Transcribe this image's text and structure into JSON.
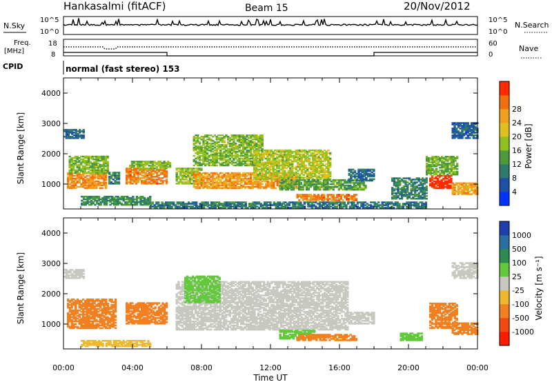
{
  "header": {
    "site": "Hankasalmi (fitACF)",
    "beam": "Beam 15",
    "date": "20/Nov/2012"
  },
  "status_panels": {
    "nsky_label": "N.Sky",
    "nsearch_label": "N.Search",
    "freq_label_1": "Freq.",
    "freq_label_2": "[MHz]",
    "nave_label": "Nave",
    "cpid_label": "CPID",
    "cpid_text": "normal (fast stereo) 153",
    "noise_ticks": [
      "10^5",
      "10^0"
    ],
    "freq_ticks": [
      "18",
      "8"
    ],
    "nave_ticks": [
      "60",
      "0"
    ]
  },
  "chart_data": [
    {
      "type": "heatmap",
      "title": "",
      "xlabel": "Time UT",
      "ylabel": "Slant Range [km]",
      "x_ticks": [
        "00:00",
        "04:00",
        "08:00",
        "12:00",
        "16:00",
        "20:00",
        "00:00"
      ],
      "xlim_hours": [
        0,
        24
      ],
      "ylim": [
        180,
        4500
      ],
      "y_ticks": [
        1000,
        2000,
        3000,
        4000
      ],
      "colorbar": {
        "label": "Power [dB]",
        "ticks": [
          "4",
          "8",
          "12",
          "16",
          "20",
          "24",
          "28"
        ],
        "range": [
          0,
          30
        ],
        "colors": [
          "#0033ff",
          "#1e50a8",
          "#2e7a6c",
          "#4c9a3c",
          "#90c020",
          "#e0c020",
          "#f0a020",
          "#f07010",
          "#ff2a00"
        ]
      },
      "blobs": [
        {
          "t0": 0.0,
          "t1": 1.2,
          "r0": 2500,
          "r1": 2800,
          "value": 7
        },
        {
          "t0": 0.2,
          "t1": 2.5,
          "r0": 850,
          "r1": 1350,
          "value": 23
        },
        {
          "t0": 0.3,
          "t1": 2.6,
          "r0": 1350,
          "r1": 1900,
          "value": 14
        },
        {
          "t0": 2.6,
          "t1": 3.2,
          "r0": 1000,
          "r1": 1400,
          "value": 9
        },
        {
          "t0": 3.6,
          "t1": 6.0,
          "r0": 1000,
          "r1": 1500,
          "value": 24
        },
        {
          "t0": 3.8,
          "t1": 6.2,
          "r0": 1500,
          "r1": 1750,
          "value": 14
        },
        {
          "t0": 1.0,
          "t1": 5.0,
          "r0": 300,
          "r1": 600,
          "value": 10
        },
        {
          "t0": 6.5,
          "t1": 8.0,
          "r0": 1000,
          "r1": 1500,
          "value": 15
        },
        {
          "t0": 7.5,
          "t1": 13.5,
          "r0": 850,
          "r1": 1350,
          "value": 22
        },
        {
          "t0": 7.5,
          "t1": 11.5,
          "r0": 1600,
          "r1": 2600,
          "value": 14
        },
        {
          "t0": 11.0,
          "t1": 15.5,
          "r0": 1150,
          "r1": 2100,
          "value": 16
        },
        {
          "t0": 12.5,
          "t1": 17.5,
          "r0": 800,
          "r1": 1150,
          "value": 12
        },
        {
          "t0": 13.5,
          "t1": 17.0,
          "r0": 450,
          "r1": 650,
          "value": 24
        },
        {
          "t0": 16.5,
          "t1": 18.0,
          "r0": 1100,
          "r1": 1500,
          "value": 7
        },
        {
          "t0": 19.0,
          "t1": 21.0,
          "r0": 500,
          "r1": 1200,
          "value": 9
        },
        {
          "t0": 21.2,
          "t1": 22.5,
          "r0": 850,
          "r1": 1300,
          "value": 29
        },
        {
          "t0": 21.0,
          "t1": 22.8,
          "r0": 1300,
          "r1": 1900,
          "value": 13
        },
        {
          "t0": 22.5,
          "t1": 24.0,
          "r0": 650,
          "r1": 1050,
          "value": 21
        },
        {
          "t0": 22.5,
          "t1": 24.0,
          "r0": 2500,
          "r1": 3000,
          "value": 6
        },
        {
          "t0": 5.0,
          "t1": 21.0,
          "r0": 200,
          "r1": 400,
          "value": 8
        }
      ]
    },
    {
      "type": "heatmap",
      "title": "",
      "xlabel": "Time UT",
      "ylabel": "Slant Range [km]",
      "x_ticks": [
        "00:00",
        "04:00",
        "08:00",
        "12:00",
        "16:00",
        "20:00",
        "00:00"
      ],
      "xlim_hours": [
        0,
        24
      ],
      "ylim": [
        180,
        4500
      ],
      "y_ticks": [
        1000,
        2000,
        3000,
        4000
      ],
      "colorbar": {
        "label": "Velocity [m s⁻¹]",
        "ticks": [
          "1000",
          "500",
          "100",
          "25",
          "-25",
          "-100",
          "-500",
          "-1000"
        ],
        "colors": [
          "#1f3fb0",
          "#2a6fa0",
          "#2f8a50",
          "#62c83c",
          "#c8c8c0",
          "#f0b830",
          "#f08020",
          "#f04a10",
          "#ff1a00"
        ]
      },
      "blobs": [
        {
          "t0": 0.0,
          "t1": 1.2,
          "r0": 2500,
          "r1": 2800,
          "value": 0
        },
        {
          "t0": 0.2,
          "t1": 3.0,
          "r0": 850,
          "r1": 1800,
          "value": -300
        },
        {
          "t0": 3.6,
          "t1": 6.0,
          "r0": 1000,
          "r1": 1700,
          "value": -300
        },
        {
          "t0": 1.0,
          "t1": 5.0,
          "r0": 250,
          "r1": 450,
          "value": -50
        },
        {
          "t0": 6.5,
          "t1": 16.5,
          "r0": 800,
          "r1": 2400,
          "value": 0
        },
        {
          "t0": 7.0,
          "t1": 9.0,
          "r0": 1700,
          "r1": 2600,
          "value": 60
        },
        {
          "t0": 12.5,
          "t1": 14.5,
          "r0": 500,
          "r1": 800,
          "value": 60
        },
        {
          "t0": 13.5,
          "t1": 17.0,
          "r0": 450,
          "r1": 650,
          "value": -200
        },
        {
          "t0": 16.5,
          "t1": 18.0,
          "r0": 1000,
          "r1": 1400,
          "value": 0
        },
        {
          "t0": 19.5,
          "t1": 20.8,
          "r0": 450,
          "r1": 700,
          "value": 60
        },
        {
          "t0": 21.2,
          "t1": 22.8,
          "r0": 850,
          "r1": 1700,
          "value": -300
        },
        {
          "t0": 22.5,
          "t1": 24.0,
          "r0": 650,
          "r1": 1050,
          "value": -300
        },
        {
          "t0": 22.5,
          "t1": 24.0,
          "r0": 2500,
          "r1": 3000,
          "value": 0
        }
      ]
    }
  ]
}
